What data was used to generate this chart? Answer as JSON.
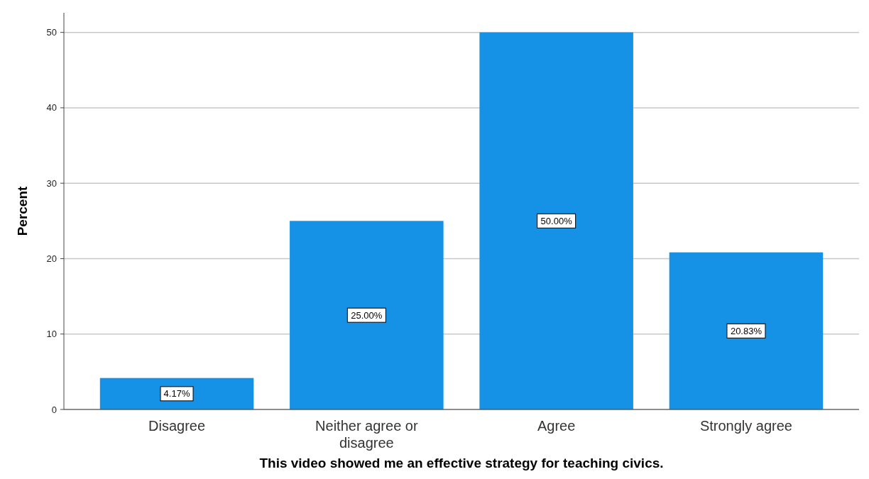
{
  "chart_data": {
    "type": "bar",
    "xlabel": "This video showed me an effective strategy for teaching civics.",
    "ylabel": "Percent",
    "categories": [
      "Disagree",
      "Neither agree or disagree",
      "Agree",
      "Strongly agree"
    ],
    "values": [
      4.17,
      25.0,
      50.0,
      20.83
    ],
    "value_labels": [
      "4.17%",
      "25.00%",
      "50.00%",
      "20.83%"
    ],
    "color": "#1591e6",
    "ylim": [
      0,
      52.6
    ],
    "yticks": [
      0,
      10,
      20,
      30,
      40,
      50
    ],
    "grid": "y"
  }
}
